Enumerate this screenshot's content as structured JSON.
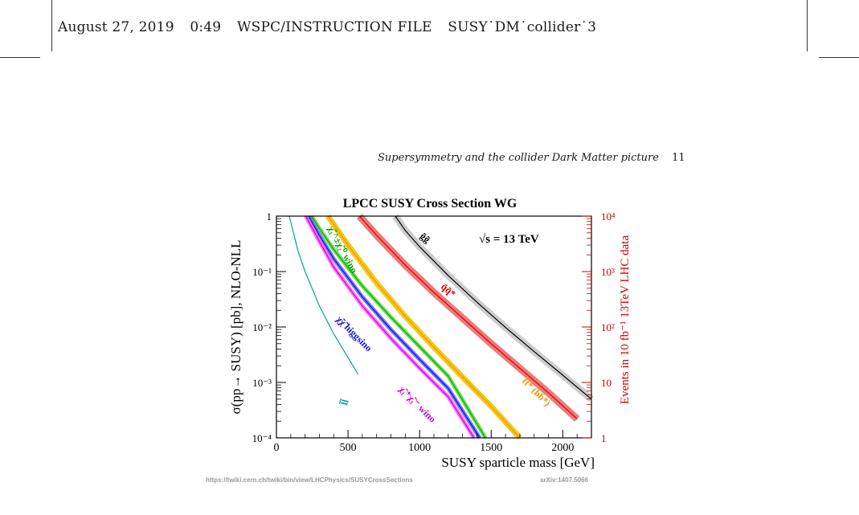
{
  "header": {
    "date": "August 27, 2019",
    "time": "0:49",
    "file_type": "WSPC/INSTRUCTION FILE",
    "file_name": "SUSY˙DM˙collider˙3"
  },
  "running_head": {
    "title": "Supersymmetry and the collider Dark Matter picture",
    "page": "11"
  },
  "chart_data": {
    "type": "line",
    "title": "LPCC SUSY Cross Section WG",
    "annotation": "√s = 13 TeV",
    "xlabel": "SUSY sparticle mass [GeV]",
    "ylabel": "σ(pp→ SUSY) [pb], NLO-NLL",
    "ylabel_right": "Events in 10 fb⁻¹ 13TeV LHC data",
    "xlim": [
      0,
      2200
    ],
    "ylim": [
      0.0001,
      1
    ],
    "y_scale": "log",
    "x_ticks": [
      "0",
      "500",
      "1000",
      "1500",
      "2000"
    ],
    "y_ticks": [
      "1",
      "10⁻¹",
      "10⁻²",
      "10⁻³",
      "10⁻⁴"
    ],
    "y2_ticks": [
      "10⁴",
      "10³",
      "10²",
      "10",
      "1"
    ],
    "footer_left": "https://twiki.cern.ch/twiki/bin/view/LHCPhysics/SUSYCrossSections",
    "footer_right": "arXiv:1407.5066",
    "series": [
      {
        "name": "gg",
        "label": "g̃g̃",
        "color": "#000000",
        "band": "#c8c8c8",
        "x": [
          830,
          900,
          1000,
          1200,
          1400,
          1600,
          1800,
          2000,
          2200
        ],
        "y": [
          1,
          0.55,
          0.28,
          0.085,
          0.028,
          0.0098,
          0.0036,
          0.00135,
          0.0005
        ]
      },
      {
        "name": "sq",
        "label": "q̃q̃*",
        "color": "#d40000",
        "band": "#f06a6a",
        "x": [
          580,
          700,
          900,
          1100,
          1300,
          1500,
          1700,
          1900,
          2100
        ],
        "y": [
          1,
          0.45,
          0.13,
          0.042,
          0.0145,
          0.005,
          0.0018,
          0.00065,
          0.00022
        ]
      },
      {
        "name": "stop",
        "label": "t̃t̃* (b̃b̃*)",
        "color": "#e89a00",
        "band": "#f5c200",
        "x": [
          360,
          500,
          700,
          900,
          1100,
          1300,
          1500,
          1700
        ],
        "y": [
          1,
          0.3,
          0.062,
          0.0155,
          0.0043,
          0.00125,
          0.00037,
          0.0001
        ]
      },
      {
        "name": "wino_n",
        "label": "χ̃₁^±χ̃₂⁰ wino",
        "color": "#00aa00",
        "band": "#66dd44",
        "x": [
          245,
          300,
          400,
          600,
          800,
          1000,
          1200,
          1460
        ],
        "y": [
          1,
          0.6,
          0.25,
          0.055,
          0.015,
          0.0044,
          0.0013,
          0.0001
        ]
      },
      {
        "name": "higgsino",
        "label": "χ̃χ̃ higgsino",
        "color": "#1010cc",
        "band": "#6a6aff",
        "x": [
          225,
          300,
          400,
          600,
          800,
          1000,
          1200,
          1420
        ],
        "y": [
          1,
          0.45,
          0.17,
          0.035,
          0.009,
          0.0026,
          0.00078,
          0.0001
        ]
      },
      {
        "name": "wino_c",
        "label": "χ̃₁⁺χ̃₁⁻ wino",
        "color": "#cc00cc",
        "band": "#ff66ff",
        "x": [
          205,
          300,
          400,
          600,
          800,
          1000,
          1200,
          1380
        ],
        "y": [
          1,
          0.35,
          0.12,
          0.024,
          0.0062,
          0.0018,
          0.00055,
          0.0001
        ]
      },
      {
        "name": "slepton",
        "label": "l̃l̃",
        "color": "#00a0a0",
        "band": "#00a0a0",
        "x": [
          90,
          150,
          200,
          300,
          400,
          500,
          570
        ],
        "y": [
          1,
          0.24,
          0.1,
          0.024,
          0.0075,
          0.0028,
          0.0014
        ]
      }
    ]
  }
}
